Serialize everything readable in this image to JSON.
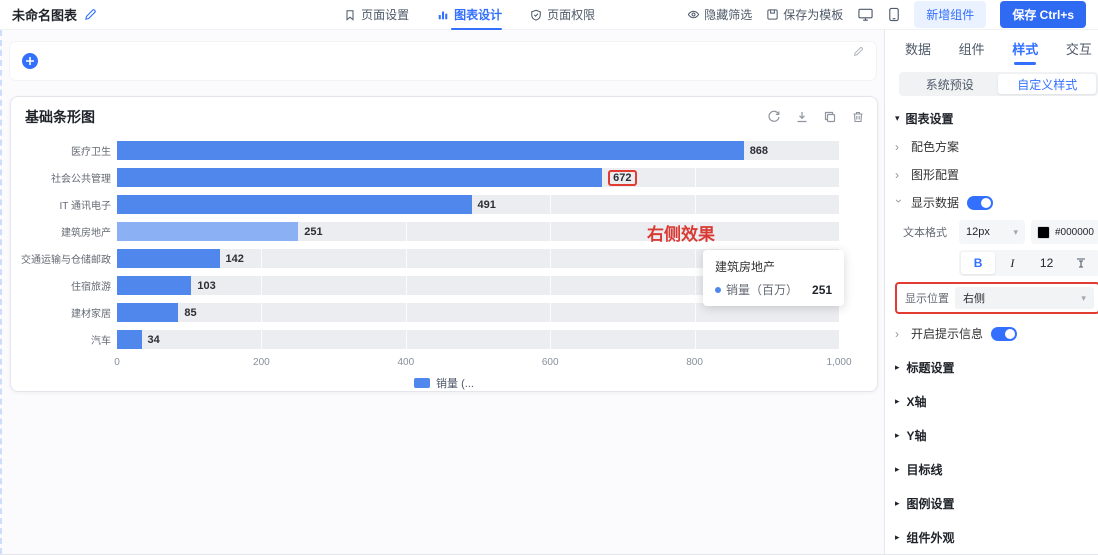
{
  "topbar": {
    "title": "未命名图表",
    "tabs": [
      {
        "label": "页面设置",
        "icon": "bookmark-icon",
        "active": false
      },
      {
        "label": "图表设计",
        "icon": "chart-icon",
        "active": true
      },
      {
        "label": "页面权限",
        "icon": "shield-icon",
        "active": false
      }
    ],
    "hide_filter": "隐藏筛选",
    "save_template": "保存为模板",
    "add_component": "新增组件",
    "save": "保存 Ctrl+s"
  },
  "chart_data": {
    "type": "bar",
    "orientation": "horizontal",
    "title": "基础条形图",
    "categories": [
      "医疗卫生",
      "社会公共管理",
      "IT 通讯电子",
      "建筑房地产",
      "交通运输与仓储邮政",
      "住宿旅游",
      "建材家居",
      "汽车"
    ],
    "values": [
      868,
      672,
      491,
      251,
      142,
      103,
      85,
      34
    ],
    "series_name": "销量（百万）",
    "legend_label": "销量 (...",
    "xticks": [
      "0",
      "200",
      "400",
      "600",
      "800",
      "1,000"
    ],
    "xlim": [
      0,
      1000
    ],
    "highlight_index": 3,
    "boxed_value": 672,
    "grid": true,
    "legend_position": "bottom"
  },
  "tooltip": {
    "title": "建筑房地产",
    "series": "销量（百万）",
    "value": "251"
  },
  "annotation": {
    "text": "右侧效果"
  },
  "panel": {
    "tabs": [
      {
        "label": "数据",
        "active": false
      },
      {
        "label": "组件",
        "active": false
      },
      {
        "label": "样式",
        "active": true
      },
      {
        "label": "交互",
        "active": false
      }
    ],
    "segments": [
      {
        "label": "系统预设",
        "active": false
      },
      {
        "label": "自定义样式",
        "active": true
      }
    ],
    "chart_settings": "图表设置",
    "color_scheme": "配色方案",
    "shape_config": "图形配置",
    "show_data": "显示数据",
    "text_format": {
      "label": "文本格式",
      "size": "12px",
      "color_hex": "#000000",
      "bold": "B",
      "italic": "I",
      "font_size": "12"
    },
    "display_position": {
      "label": "显示位置",
      "value": "右侧"
    },
    "tooltip_label": "开启提示信息",
    "sections": [
      "标题设置",
      "X轴",
      "Y轴",
      "目标线",
      "图例设置",
      "组件外观"
    ]
  },
  "colors": {
    "accent": "#3370ff",
    "bar": "#5087ec",
    "bar_highlight": "#8bb0f3",
    "annotation_red": "#e23c32",
    "data_label": "#000000"
  }
}
